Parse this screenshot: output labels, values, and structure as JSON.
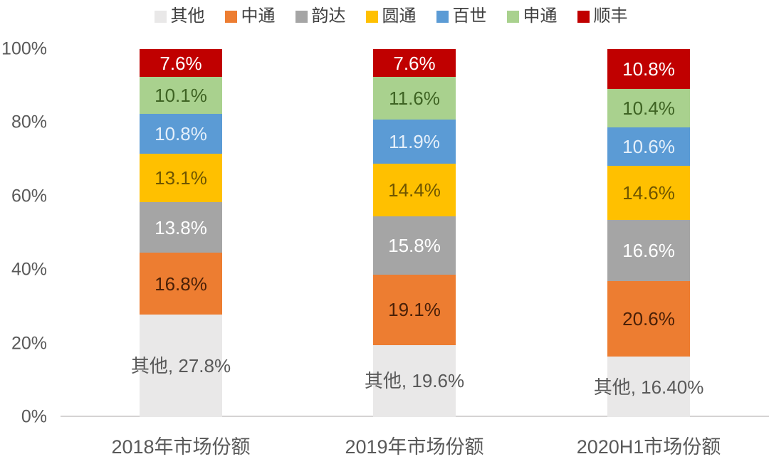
{
  "chart_data": {
    "type": "bar",
    "stacked": true,
    "unit": "percent",
    "title": "",
    "xlabel": "",
    "ylabel": "",
    "grid": false,
    "legend_position": "top",
    "categories": [
      "2018年市场份额",
      "2019年市场份额",
      "2020H1市场份额"
    ],
    "y_axis": {
      "min": 0,
      "max": 100,
      "tick_step": 20,
      "ticks": [
        "100%",
        "80%",
        "60%",
        "40%",
        "20%",
        "0%"
      ]
    },
    "series": [
      {
        "name": "其他",
        "color": "#e9e8e8",
        "label_color": "#595959",
        "values": [
          27.8,
          19.6,
          16.4
        ],
        "labels": [
          "其他, 27.8%",
          "其他, 19.6%",
          "其他, 16.40%"
        ]
      },
      {
        "name": "中通",
        "color": "#ed7d31",
        "label_color": "#4a2007",
        "values": [
          16.8,
          19.1,
          20.6
        ],
        "labels": [
          "16.8%",
          "19.1%",
          "20.6%"
        ]
      },
      {
        "name": "韵达",
        "color": "#a5a5a5",
        "label_color": "#ffffff",
        "values": [
          13.8,
          15.8,
          16.6
        ],
        "labels": [
          "13.8%",
          "15.8%",
          "16.6%"
        ]
      },
      {
        "name": "圆通",
        "color": "#ffc000",
        "label_color": "#6f5500",
        "values": [
          13.1,
          14.4,
          14.6
        ],
        "labels": [
          "13.1%",
          "14.4%",
          "14.6%"
        ]
      },
      {
        "name": "百世",
        "color": "#5b9bd5",
        "label_color": "#e4effa",
        "values": [
          10.8,
          11.9,
          10.6
        ],
        "labels": [
          "10.8%",
          "11.9%",
          "10.6%"
        ]
      },
      {
        "name": "申通",
        "color": "#a9d18e",
        "label_color": "#3e6323",
        "values": [
          10.1,
          11.6,
          10.4
        ],
        "labels": [
          "10.1%",
          "11.6%",
          "10.4%"
        ]
      },
      {
        "name": "顺丰",
        "color": "#c00000",
        "label_color": "#ffffff",
        "values": [
          7.6,
          7.6,
          10.8
        ],
        "labels": [
          "7.6%",
          "7.6%",
          "10.8%"
        ]
      }
    ]
  }
}
